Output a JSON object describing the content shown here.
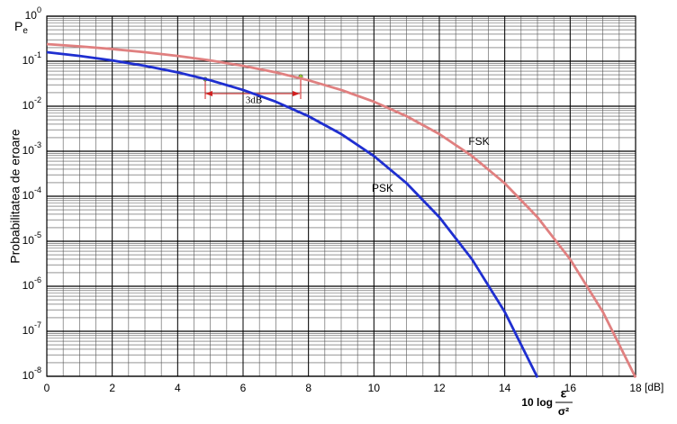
{
  "chart_data": {
    "type": "line",
    "y_label": "Probabilitatea de eroare",
    "y_symbol": {
      "base": "P",
      "sub": "e"
    },
    "x_label": {
      "prefix": "10 log",
      "numerator": "ε",
      "denominator": "σ²",
      "unit": "[dB]"
    },
    "annotations": [
      "3dB"
    ],
    "log_y": true,
    "grid": true,
    "xlim": [
      0,
      18
    ],
    "xticks": [
      0,
      2,
      4,
      6,
      8,
      10,
      12,
      14,
      16,
      18
    ],
    "ylim": [
      1e-08,
      1
    ],
    "yticks": [
      {
        "value": 1,
        "label": "10^0"
      },
      {
        "value": 0.1,
        "label": "10^-1"
      },
      {
        "value": 0.01,
        "label": "10^-2"
      },
      {
        "value": 0.001,
        "label": "10^-3"
      },
      {
        "value": 0.0001,
        "label": "10^-4"
      },
      {
        "value": 1e-05,
        "label": "10^-5"
      },
      {
        "value": 1e-06,
        "label": "10^-6"
      },
      {
        "value": 1e-07,
        "label": "10^-7"
      },
      {
        "value": 1e-08,
        "label": "10^-8"
      }
    ],
    "series": [
      {
        "name": "PSK",
        "color": "#1f2fd0",
        "x": [
          0,
          1,
          2,
          3,
          4,
          5,
          6,
          7,
          8,
          9,
          10,
          11,
          12,
          13,
          14,
          15
        ],
        "values": [
          0.1587,
          0.1309,
          0.104,
          0.0789,
          0.0565,
          0.0377,
          0.023,
          0.0126,
          0.006,
          0.00241,
          0.000783,
          0.000194,
          3.43e-05,
          3.97e-06,
          2.69e-07,
          9.4e-09
        ]
      },
      {
        "name": "FSK",
        "color": "#e08080",
        "x": [
          0,
          1,
          2,
          3,
          4,
          5,
          6,
          7,
          8,
          9,
          10,
          11,
          12,
          13,
          14,
          15,
          16,
          17,
          18
        ],
        "values": [
          0.24,
          0.2138,
          0.1867,
          0.1587,
          0.1309,
          0.104,
          0.0789,
          0.0565,
          0.0377,
          0.023,
          0.0126,
          0.006,
          0.00241,
          0.000783,
          0.000194,
          3.43e-05,
          3.97e-06,
          2.69e-07,
          9.4e-09
        ]
      }
    ]
  }
}
